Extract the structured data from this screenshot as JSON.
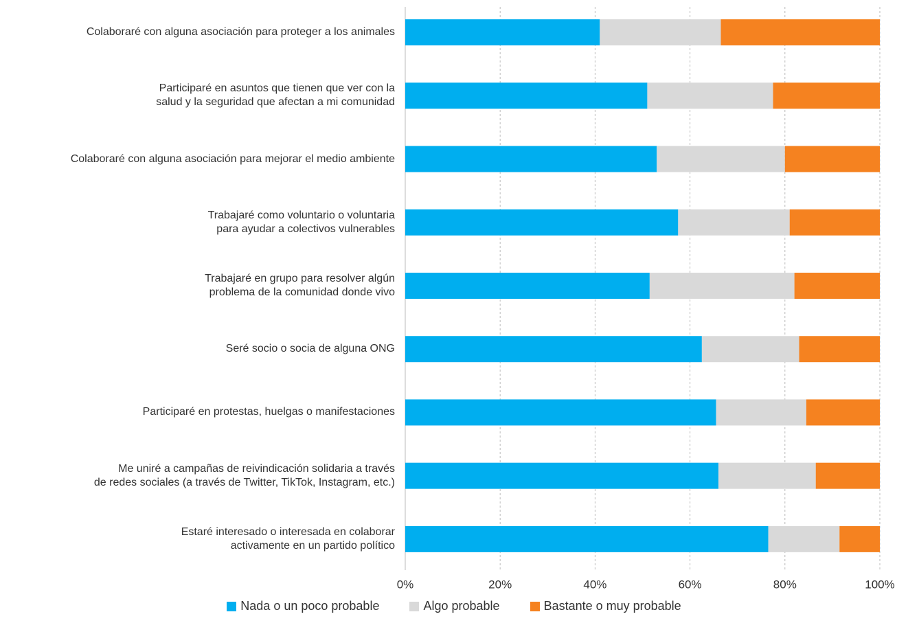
{
  "chart_data": {
    "type": "stacked-bar-horizontal",
    "categories": [
      "Colaboraré con alguna asociación para proteger a los animales",
      "Participaré en asuntos que tienen que ver con la\nsalud y la seguridad que afectan a mi comunidad",
      "Colaboraré con alguna asociación para mejorar el medio ambiente",
      "Trabajaré como voluntario o voluntaria\npara ayudar a colectivos vulnerables",
      "Trabajaré en grupo para resolver algún\nproblema de la comunidad donde vivo",
      "Seré socio o socia de alguna ONG",
      "Participaré en protestas, huelgas o manifestaciones",
      "Me uniré a campañas de reivindicación solidaria a través\nde redes sociales (a través de Twitter, TikTok, Instagram, etc.)",
      "Estaré interesado o interesada en colaborar\nactivamente en un partido político"
    ],
    "series": [
      {
        "name": "Nada o un poco probable",
        "color": "#00aeef",
        "values": [
          41,
          51,
          53,
          57.5,
          51.5,
          62.5,
          65.5,
          66,
          76.5
        ]
      },
      {
        "name": "Algo probable",
        "color": "#d9d9d9",
        "values": [
          25.5,
          26.5,
          27,
          23.5,
          30.5,
          20.5,
          19,
          20.5,
          15
        ]
      },
      {
        "name": "Bastante o muy probable",
        "color": "#f58220",
        "values": [
          33.5,
          22.5,
          20,
          19,
          18,
          17,
          15.5,
          13.5,
          8.5
        ]
      }
    ],
    "xlim": [
      0,
      100
    ],
    "xticks": [
      {
        "value": 0,
        "label": "0%"
      },
      {
        "value": 20,
        "label": "20%"
      },
      {
        "value": 40,
        "label": "40%"
      },
      {
        "value": 60,
        "label": "60%"
      },
      {
        "value": 80,
        "label": "80%"
      },
      {
        "value": 100,
        "label": "100%"
      }
    ],
    "grid": true,
    "legend": "bottom"
  }
}
